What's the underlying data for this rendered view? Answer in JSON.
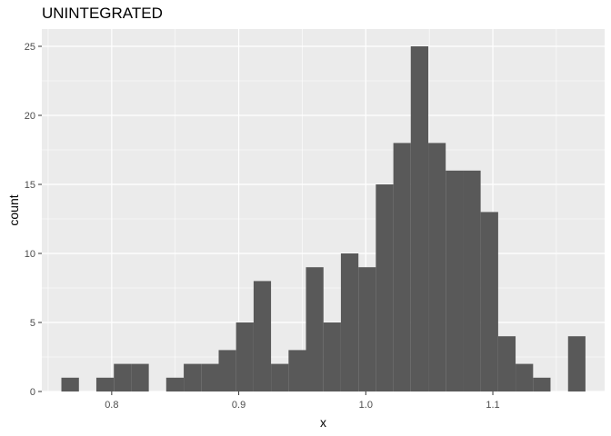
{
  "chart_data": {
    "type": "bar",
    "title": "UNINTEGRATED",
    "xlabel": "x",
    "ylabel": "count",
    "xlim": [
      0.745,
      1.188
    ],
    "ylim": [
      0,
      26.25
    ],
    "x_ticks": [
      0.8,
      0.9,
      1.0,
      1.1
    ],
    "x_tick_labels": [
      "0.8",
      "0.9",
      "1.0",
      "1.1"
    ],
    "y_ticks": [
      0,
      5,
      10,
      15,
      20,
      25
    ],
    "y_tick_labels": [
      "0",
      "5",
      "10",
      "15",
      "20",
      "25"
    ],
    "grid": true,
    "legend": "none",
    "bin_width": 0.01375,
    "bins": [
      {
        "x0": 0.7604,
        "x1": 0.7742,
        "count": 1
      },
      {
        "x0": 0.7742,
        "x1": 0.7879,
        "count": 0
      },
      {
        "x0": 0.7879,
        "x1": 0.8017,
        "count": 1
      },
      {
        "x0": 0.8017,
        "x1": 0.8154,
        "count": 2
      },
      {
        "x0": 0.8154,
        "x1": 0.8292,
        "count": 2
      },
      {
        "x0": 0.8292,
        "x1": 0.8429,
        "count": 0
      },
      {
        "x0": 0.8429,
        "x1": 0.8567,
        "count": 1
      },
      {
        "x0": 0.8567,
        "x1": 0.8704,
        "count": 2
      },
      {
        "x0": 0.8704,
        "x1": 0.8842,
        "count": 2
      },
      {
        "x0": 0.8842,
        "x1": 0.8979,
        "count": 3
      },
      {
        "x0": 0.8979,
        "x1": 0.9117,
        "count": 5
      },
      {
        "x0": 0.9117,
        "x1": 0.9254,
        "count": 8
      },
      {
        "x0": 0.9254,
        "x1": 0.9392,
        "count": 2
      },
      {
        "x0": 0.9392,
        "x1": 0.9529,
        "count": 3
      },
      {
        "x0": 0.9529,
        "x1": 0.9667,
        "count": 9
      },
      {
        "x0": 0.9667,
        "x1": 0.9804,
        "count": 5
      },
      {
        "x0": 0.9804,
        "x1": 0.9942,
        "count": 10
      },
      {
        "x0": 0.9942,
        "x1": 1.0079,
        "count": 9
      },
      {
        "x0": 1.0079,
        "x1": 1.0217,
        "count": 15
      },
      {
        "x0": 1.0217,
        "x1": 1.0354,
        "count": 18
      },
      {
        "x0": 1.0354,
        "x1": 1.0492,
        "count": 25
      },
      {
        "x0": 1.0492,
        "x1": 1.0629,
        "count": 18
      },
      {
        "x0": 1.0629,
        "x1": 1.0767,
        "count": 16
      },
      {
        "x0": 1.0767,
        "x1": 1.0904,
        "count": 16
      },
      {
        "x0": 1.0904,
        "x1": 1.1042,
        "count": 13
      },
      {
        "x0": 1.1042,
        "x1": 1.1179,
        "count": 4
      },
      {
        "x0": 1.1179,
        "x1": 1.1317,
        "count": 2
      },
      {
        "x0": 1.1317,
        "x1": 1.1454,
        "count": 1
      },
      {
        "x0": 1.1454,
        "x1": 1.1592,
        "count": 0
      },
      {
        "x0": 1.1592,
        "x1": 1.1729,
        "count": 4
      }
    ],
    "colors": {
      "panel_background": "#ebebeb",
      "grid_major": "#ffffff",
      "bar_fill": "#595959",
      "tick_text": "#4d4d4d"
    }
  }
}
